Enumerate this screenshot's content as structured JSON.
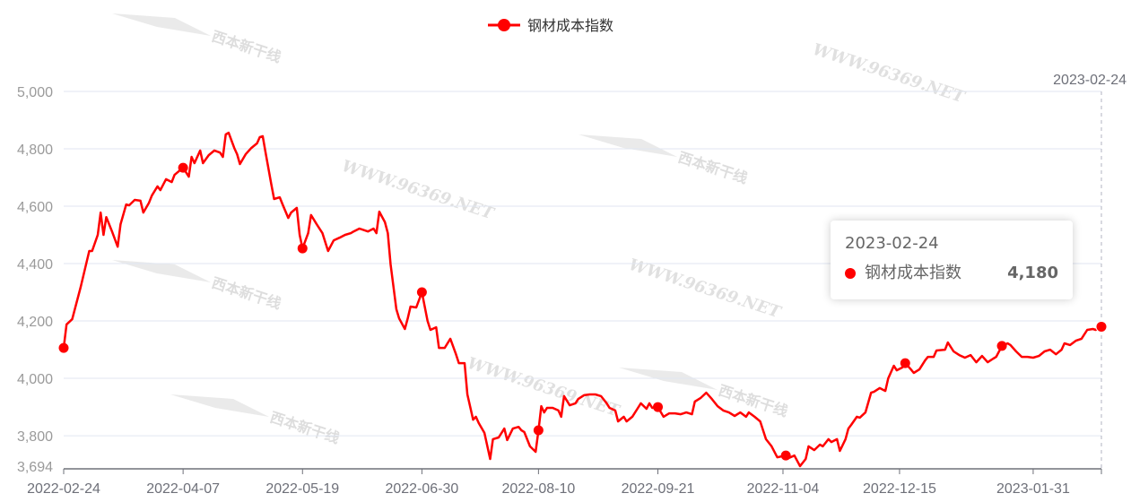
{
  "watermarks": {
    "site": "WWW.96369.NET",
    "brand": "西本新干线"
  },
  "tooltip": {
    "date": "2023-02-24",
    "series": "钢材成本指数",
    "value": "4,180"
  },
  "chart_data": {
    "type": "line",
    "title": "",
    "xlabel": "",
    "ylabel": "",
    "legend": {
      "entries": [
        "钢材成本指数"
      ],
      "placement": "top-center"
    },
    "grid": true,
    "ylim": [
      3694,
      5000
    ],
    "xlim": [
      "2022-02-24",
      "2023-02-24"
    ],
    "y_ticks": [
      "3,694",
      "3,800",
      "4,000",
      "4,200",
      "4,400",
      "4,600",
      "4,800",
      "5,000"
    ],
    "y_tick_values": [
      3694,
      3800,
      4000,
      4200,
      4400,
      4600,
      4800,
      5000
    ],
    "x_ticks": [
      "2022-02-24",
      "2022-04-07",
      "2022-05-19",
      "2022-06-30",
      "2022-08-10",
      "2022-09-21",
      "2022-11-04",
      "2022-12-15",
      "2023-01-31",
      "2023-02-24"
    ],
    "color": "#ff0000",
    "series": [
      {
        "name": "钢材成本指数",
        "points": [
          [
            "2022-02-24",
            4106
          ],
          [
            "2022-02-25",
            4188
          ],
          [
            "2022-02-27",
            4206
          ],
          [
            "2022-03-02",
            4319
          ],
          [
            "2022-03-05",
            4444
          ],
          [
            "2022-03-06",
            4444
          ],
          [
            "2022-03-08",
            4500
          ],
          [
            "2022-03-09",
            4578
          ],
          [
            "2022-03-10",
            4500
          ],
          [
            "2022-03-11",
            4562
          ],
          [
            "2022-03-13",
            4512
          ],
          [
            "2022-03-15",
            4459
          ],
          [
            "2022-03-16",
            4537
          ],
          [
            "2022-03-18",
            4606
          ],
          [
            "2022-03-19",
            4603
          ],
          [
            "2022-03-21",
            4622
          ],
          [
            "2022-03-23",
            4619
          ],
          [
            "2022-03-24",
            4578
          ],
          [
            "2022-03-26",
            4612
          ],
          [
            "2022-03-27",
            4637
          ],
          [
            "2022-03-29",
            4669
          ],
          [
            "2022-03-30",
            4656
          ],
          [
            "2022-04-01",
            4694
          ],
          [
            "2022-04-03",
            4684
          ],
          [
            "2022-04-04",
            4709
          ],
          [
            "2022-04-07",
            4734
          ],
          [
            "2022-04-09",
            4703
          ],
          [
            "2022-04-10",
            4772
          ],
          [
            "2022-04-11",
            4750
          ],
          [
            "2022-04-13",
            4794
          ],
          [
            "2022-04-14",
            4750
          ],
          [
            "2022-04-16",
            4778
          ],
          [
            "2022-04-18",
            4794
          ],
          [
            "2022-04-20",
            4787
          ],
          [
            "2022-04-21",
            4772
          ],
          [
            "2022-04-22",
            4850
          ],
          [
            "2022-04-23",
            4856
          ],
          [
            "2022-04-25",
            4803
          ],
          [
            "2022-04-26",
            4781
          ],
          [
            "2022-04-27",
            4747
          ],
          [
            "2022-04-29",
            4781
          ],
          [
            "2022-05-01",
            4803
          ],
          [
            "2022-05-03",
            4819
          ],
          [
            "2022-05-04",
            4841
          ],
          [
            "2022-05-05",
            4844
          ],
          [
            "2022-05-06",
            4787
          ],
          [
            "2022-05-08",
            4678
          ],
          [
            "2022-05-09",
            4625
          ],
          [
            "2022-05-11",
            4631
          ],
          [
            "2022-05-12",
            4606
          ],
          [
            "2022-05-14",
            4559
          ],
          [
            "2022-05-15",
            4578
          ],
          [
            "2022-05-17",
            4594
          ],
          [
            "2022-05-18",
            4500
          ],
          [
            "2022-05-19",
            4453
          ],
          [
            "2022-05-21",
            4506
          ],
          [
            "2022-05-22",
            4569
          ],
          [
            "2022-05-24",
            4537
          ],
          [
            "2022-05-26",
            4506
          ],
          [
            "2022-05-28",
            4444
          ],
          [
            "2022-05-30",
            4481
          ],
          [
            "2022-06-01",
            4490
          ],
          [
            "2022-06-03",
            4500
          ],
          [
            "2022-06-05",
            4506
          ],
          [
            "2022-06-06",
            4512
          ],
          [
            "2022-06-08",
            4522
          ],
          [
            "2022-06-11",
            4512
          ],
          [
            "2022-06-13",
            4522
          ],
          [
            "2022-06-14",
            4506
          ],
          [
            "2022-06-15",
            4581
          ],
          [
            "2022-06-17",
            4544
          ],
          [
            "2022-06-18",
            4506
          ],
          [
            "2022-06-19",
            4397
          ],
          [
            "2022-06-21",
            4241
          ],
          [
            "2022-06-22",
            4209
          ],
          [
            "2022-06-24",
            4172
          ],
          [
            "2022-06-25",
            4209
          ],
          [
            "2022-06-26",
            4250
          ],
          [
            "2022-06-28",
            4247
          ],
          [
            "2022-06-30",
            4300
          ],
          [
            "2022-07-02",
            4200
          ],
          [
            "2022-07-03",
            4169
          ],
          [
            "2022-07-05",
            4178
          ],
          [
            "2022-07-06",
            4106
          ],
          [
            "2022-07-08",
            4106
          ],
          [
            "2022-07-10",
            4138
          ],
          [
            "2022-07-12",
            4084
          ],
          [
            "2022-07-13",
            4053
          ],
          [
            "2022-07-15",
            4053
          ],
          [
            "2022-07-16",
            3944
          ],
          [
            "2022-07-18",
            3856
          ],
          [
            "2022-07-19",
            3866
          ],
          [
            "2022-07-20",
            3844
          ],
          [
            "2022-07-22",
            3810
          ],
          [
            "2022-07-24",
            3719
          ],
          [
            "2022-07-25",
            3788
          ],
          [
            "2022-07-27",
            3794
          ],
          [
            "2022-07-29",
            3825
          ],
          [
            "2022-07-30",
            3785
          ],
          [
            "2022-08-01",
            3825
          ],
          [
            "2022-08-03",
            3831
          ],
          [
            "2022-08-04",
            3819
          ],
          [
            "2022-08-05",
            3813
          ],
          [
            "2022-08-07",
            3763
          ],
          [
            "2022-08-09",
            3744
          ],
          [
            "2022-08-10",
            3819
          ],
          [
            "2022-08-11",
            3903
          ],
          [
            "2022-08-12",
            3881
          ],
          [
            "2022-08-13",
            3897
          ],
          [
            "2022-08-15",
            3897
          ],
          [
            "2022-08-17",
            3888
          ],
          [
            "2022-08-18",
            3866
          ],
          [
            "2022-08-19",
            3938
          ],
          [
            "2022-08-21",
            3906
          ],
          [
            "2022-08-23",
            3913
          ],
          [
            "2022-08-24",
            3928
          ],
          [
            "2022-08-26",
            3941
          ],
          [
            "2022-08-28",
            3944
          ],
          [
            "2022-08-30",
            3944
          ],
          [
            "2022-09-01",
            3938
          ],
          [
            "2022-09-03",
            3913
          ],
          [
            "2022-09-04",
            3897
          ],
          [
            "2022-09-06",
            3888
          ],
          [
            "2022-09-07",
            3850
          ],
          [
            "2022-09-09",
            3866
          ],
          [
            "2022-09-10",
            3850
          ],
          [
            "2022-09-12",
            3866
          ],
          [
            "2022-09-14",
            3897
          ],
          [
            "2022-09-15",
            3913
          ],
          [
            "2022-09-17",
            3894
          ],
          [
            "2022-09-18",
            3913
          ],
          [
            "2022-09-19",
            3897
          ],
          [
            "2022-09-21",
            3900
          ],
          [
            "2022-09-23",
            3866
          ],
          [
            "2022-09-25",
            3878
          ],
          [
            "2022-09-27",
            3878
          ],
          [
            "2022-09-29",
            3875
          ],
          [
            "2022-10-01",
            3881
          ],
          [
            "2022-10-03",
            3875
          ],
          [
            "2022-10-04",
            3919
          ],
          [
            "2022-10-06",
            3931
          ],
          [
            "2022-10-08",
            3950
          ],
          [
            "2022-10-10",
            3928
          ],
          [
            "2022-10-12",
            3903
          ],
          [
            "2022-10-14",
            3888
          ],
          [
            "2022-10-16",
            3881
          ],
          [
            "2022-10-18",
            3869
          ],
          [
            "2022-10-20",
            3881
          ],
          [
            "2022-10-22",
            3866
          ],
          [
            "2022-10-23",
            3881
          ],
          [
            "2022-10-25",
            3866
          ],
          [
            "2022-10-27",
            3850
          ],
          [
            "2022-10-29",
            3788
          ],
          [
            "2022-10-31",
            3763
          ],
          [
            "2022-11-02",
            3725
          ],
          [
            "2022-11-05",
            3731
          ],
          [
            "2022-11-06",
            3722
          ],
          [
            "2022-11-08",
            3731
          ],
          [
            "2022-11-10",
            3694
          ],
          [
            "2022-11-12",
            3719
          ],
          [
            "2022-11-13",
            3763
          ],
          [
            "2022-11-15",
            3750
          ],
          [
            "2022-11-17",
            3769
          ],
          [
            "2022-11-18",
            3763
          ],
          [
            "2022-11-20",
            3788
          ],
          [
            "2022-11-21",
            3778
          ],
          [
            "2022-11-23",
            3788
          ],
          [
            "2022-11-24",
            3747
          ],
          [
            "2022-11-26",
            3788
          ],
          [
            "2022-11-27",
            3825
          ],
          [
            "2022-11-28",
            3838
          ],
          [
            "2022-11-30",
            3866
          ],
          [
            "2022-12-01",
            3863
          ],
          [
            "2022-12-03",
            3881
          ],
          [
            "2022-12-05",
            3950
          ],
          [
            "2022-12-06",
            3953
          ],
          [
            "2022-12-08",
            3966
          ],
          [
            "2022-12-10",
            3956
          ],
          [
            "2022-12-11",
            4000
          ],
          [
            "2022-12-13",
            4044
          ],
          [
            "2022-12-14",
            4028
          ],
          [
            "2022-12-16",
            4038
          ],
          [
            "2022-12-17",
            4053
          ],
          [
            "2022-12-19",
            4031
          ],
          [
            "2022-12-20",
            4019
          ],
          [
            "2022-12-22",
            4031
          ],
          [
            "2022-12-24",
            4063
          ],
          [
            "2022-12-25",
            4075
          ],
          [
            "2022-12-27",
            4075
          ],
          [
            "2022-12-28",
            4097
          ],
          [
            "2022-12-31",
            4100
          ],
          [
            "2023-01-01",
            4125
          ],
          [
            "2023-01-03",
            4094
          ],
          [
            "2023-01-05",
            4081
          ],
          [
            "2023-01-07",
            4072
          ],
          [
            "2023-01-09",
            4081
          ],
          [
            "2023-01-11",
            4056
          ],
          [
            "2023-01-13",
            4078
          ],
          [
            "2023-01-15",
            4056
          ],
          [
            "2023-01-17",
            4069
          ],
          [
            "2023-01-18",
            4075
          ],
          [
            "2023-01-20",
            4113
          ],
          [
            "2023-01-22",
            4122
          ],
          [
            "2023-01-23",
            4116
          ],
          [
            "2023-01-25",
            4094
          ],
          [
            "2023-01-27",
            4075
          ],
          [
            "2023-01-29",
            4075
          ],
          [
            "2023-01-31",
            4072
          ],
          [
            "2023-02-02",
            4078
          ],
          [
            "2023-02-04",
            4094
          ],
          [
            "2023-02-06",
            4100
          ],
          [
            "2023-02-08",
            4084
          ],
          [
            "2023-02-10",
            4100
          ],
          [
            "2023-02-11",
            4122
          ],
          [
            "2023-02-13",
            4116
          ],
          [
            "2023-02-15",
            4131
          ],
          [
            "2023-02-17",
            4138
          ],
          [
            "2023-02-19",
            4169
          ],
          [
            "2023-02-21",
            4172
          ],
          [
            "2023-02-22",
            4169
          ],
          [
            "2023-02-24",
            4180
          ]
        ],
        "marked_points": [
          "2022-02-24",
          "2022-04-07",
          "2022-05-19",
          "2022-06-30",
          "2022-08-10",
          "2022-09-21",
          "2022-11-05",
          "2022-12-17",
          "2023-01-20",
          "2023-02-24"
        ]
      }
    ]
  }
}
